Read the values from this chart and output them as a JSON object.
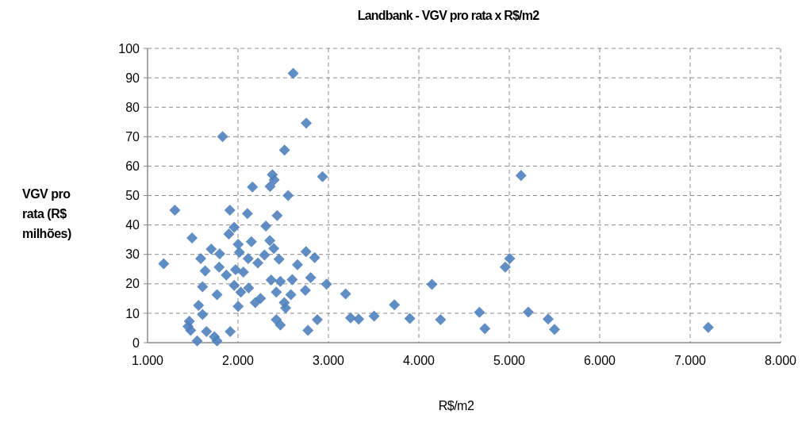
{
  "chart_data": {
    "type": "scatter",
    "title": "Landbank - VGV pro rata x R$/m2",
    "xlabel": "R$/m2",
    "ylabel": "VGV pro rata (R$ milhões)",
    "xlim": [
      1000,
      8000
    ],
    "xticks": [
      {
        "value": 1000,
        "label": "1.000"
      },
      {
        "value": 2000,
        "label": "2.000"
      },
      {
        "value": 3000,
        "label": "3.000"
      },
      {
        "value": 4000,
        "label": "4.000"
      },
      {
        "value": 5000,
        "label": "5.000"
      },
      {
        "value": 6000,
        "label": "6.000"
      },
      {
        "value": 7000,
        "label": "7.000"
      },
      {
        "value": 8000,
        "label": "8.000"
      }
    ],
    "ylim": [
      0,
      100
    ],
    "yticks": [
      0,
      10,
      20,
      30,
      40,
      50,
      60,
      70,
      80,
      90,
      100
    ],
    "grid": true,
    "marker": "diamond",
    "series": [
      {
        "color": "#4f81bd",
        "x": [
          2610,
          2755,
          1830,
          2515,
          2935,
          2160,
          2380,
          2400,
          2355,
          2555,
          5130,
          5005,
          4955,
          4145,
          3730,
          3505,
          3335,
          3245,
          3190,
          3900,
          4240,
          4670,
          4730,
          5210,
          5430,
          5500,
          7200,
          1302,
          1910,
          2104,
          2433,
          2308,
          1958,
          1899,
          1492,
          2148,
          2002,
          1704,
          2352,
          2396,
          1798,
          2752,
          2848,
          2454,
          1588,
          2293,
          2016,
          2113,
          2220,
          1179,
          1637,
          1792,
          2658,
          1871,
          2060,
          1973,
          2367,
          2468,
          2600,
          2804,
          2979,
          1608,
          1958,
          2118,
          2031,
          1768,
          2424,
          2745,
          2585,
          2249,
          2002,
          2191,
          2512,
          2527,
          1564,
          1608,
          2424,
          2468,
          2877,
          2774,
          1462,
          1477,
          1914,
          1652,
          1739,
          1549,
          1768,
          1448
        ],
        "values": [
          91.5,
          74.6,
          70,
          65.4,
          56.4,
          52.9,
          57.1,
          55.3,
          53.1,
          50,
          56.8,
          28.6,
          25.7,
          19.8,
          12.9,
          9,
          8,
          8.4,
          16.6,
          8.2,
          7.8,
          10.3,
          4.8,
          10.4,
          8,
          4.5,
          5.2,
          45,
          45,
          43.9,
          43.2,
          39.6,
          39.2,
          36.9,
          35.6,
          34.3,
          33.4,
          31.8,
          34.7,
          32,
          30.2,
          30.9,
          28.9,
          28.4,
          28.6,
          29.8,
          30.7,
          28.6,
          27.1,
          26.8,
          24.4,
          25.7,
          26.5,
          23,
          24,
          24.8,
          21.3,
          20.8,
          21.4,
          22.1,
          19.9,
          19,
          19.5,
          18.6,
          17.2,
          16.3,
          17.2,
          17.8,
          16.3,
          15,
          12.3,
          13.6,
          13.6,
          11.8,
          12.7,
          9.6,
          7.8,
          6,
          7.8,
          4.2,
          7.3,
          4.2,
          3.8,
          3.8,
          2,
          0.6,
          0.6,
          5.5
        ]
      }
    ]
  }
}
